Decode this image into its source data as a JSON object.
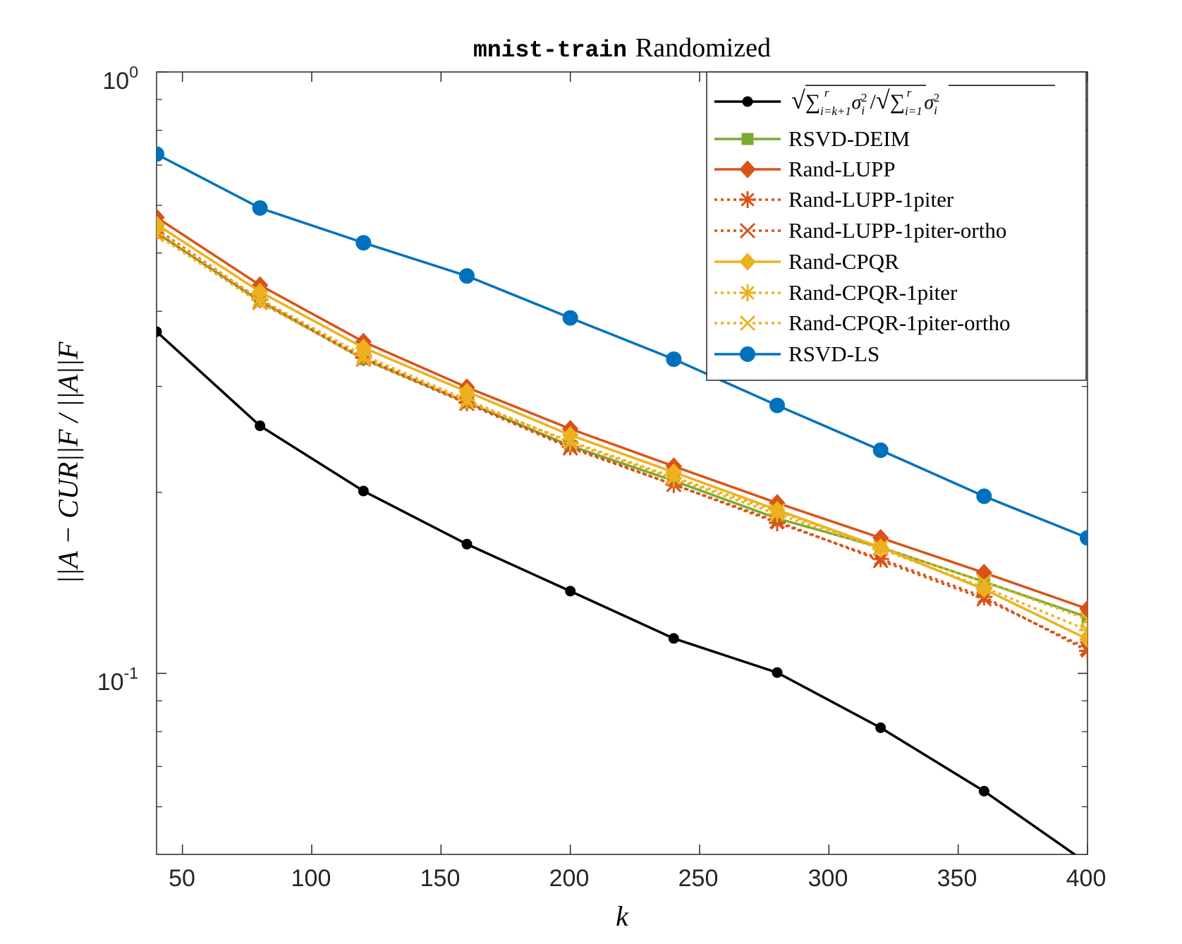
{
  "chart_data": {
    "type": "line",
    "title_mono": "mnist-train",
    "title_rest": "Randomized",
    "xlabel": "k",
    "ylabel": "||A − CUR||F / ||A||F",
    "y_scale": "log",
    "xlim": [
      40,
      400
    ],
    "ylim": [
      0.05,
      1.0
    ],
    "x_ticks": [
      "50",
      "100",
      "150",
      "200",
      "250",
      "300",
      "350",
      "400"
    ],
    "y_ticks": [
      {
        "base": "10",
        "exp": "0"
      },
      {
        "base": "10",
        "exp": "-1"
      }
    ],
    "x": [
      40,
      80,
      120,
      160,
      200,
      240,
      280,
      320,
      360,
      400
    ],
    "legend_position": "top-right",
    "series": [
      {
        "name": "√(Σ_{i=k+1}^r σ_i²) / √(Σ_{i=1}^r σ_i²)",
        "color": "#000000",
        "dash": "solid",
        "marker": "dot",
        "values": [
          0.37,
          0.258,
          0.201,
          0.164,
          0.137,
          0.1143,
          0.1003,
          0.0812,
          0.0637,
          0.0483
        ]
      },
      {
        "name": "RSVD-DEIM",
        "color": "#77AC30",
        "dash": "solid",
        "marker": "square",
        "values": [
          0.54,
          0.416,
          0.333,
          0.282,
          0.239,
          0.209,
          0.181,
          0.162,
          0.142,
          0.124
        ]
      },
      {
        "name": "Rand-LUPP",
        "color": "#D95319",
        "dash": "solid",
        "marker": "diamond",
        "values": [
          0.573,
          0.442,
          0.356,
          0.299,
          0.255,
          0.221,
          0.192,
          0.168,
          0.147,
          0.128
        ]
      },
      {
        "name": "Rand-LUPP-1piter",
        "color": "#D95319",
        "dash": "dotted",
        "marker": "asterisk",
        "values": [
          0.548,
          0.418,
          0.335,
          0.282,
          0.238,
          0.206,
          0.178,
          0.155,
          0.134,
          0.109
        ]
      },
      {
        "name": "Rand-LUPP-1piter-ortho",
        "color": "#D95319",
        "dash": "dotted",
        "marker": "x",
        "values": [
          0.541,
          0.415,
          0.333,
          0.281,
          0.237,
          0.206,
          0.179,
          0.154,
          0.133,
          0.11
        ]
      },
      {
        "name": "Rand-CPQR",
        "color": "#EDB120",
        "dash": "solid",
        "marker": "diamond",
        "values": [
          0.558,
          0.431,
          0.348,
          0.294,
          0.249,
          0.216,
          0.187,
          0.162,
          0.138,
          0.114
        ]
      },
      {
        "name": "Rand-CPQR-1piter",
        "color": "#EDB120",
        "dash": "dotted",
        "marker": "asterisk",
        "values": [
          0.545,
          0.419,
          0.338,
          0.285,
          0.242,
          0.211,
          0.184,
          0.161,
          0.139,
          0.118
        ]
      },
      {
        "name": "Rand-CPQR-1piter-ortho",
        "color": "#EDB120",
        "dash": "dotted",
        "marker": "x",
        "values": [
          0.536,
          0.413,
          0.334,
          0.283,
          0.243,
          0.212,
          0.186,
          0.162,
          0.142,
          0.123
        ]
      },
      {
        "name": "RSVD-LS",
        "color": "#0072BD",
        "dash": "solid",
        "marker": "dot",
        "values": [
          0.73,
          0.594,
          0.52,
          0.458,
          0.39,
          0.333,
          0.279,
          0.235,
          0.197,
          0.168
        ]
      }
    ]
  }
}
